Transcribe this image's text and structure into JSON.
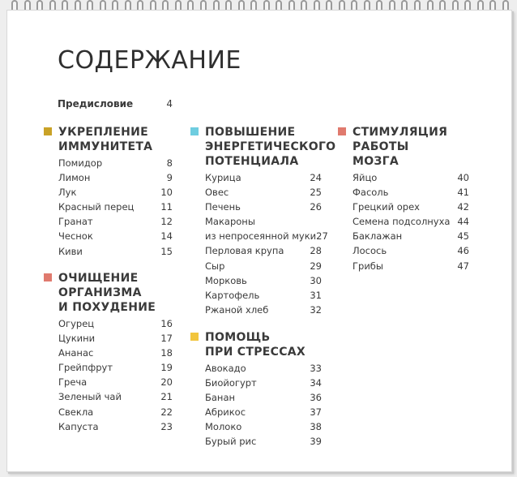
{
  "page_title": "СОДЕРЖАНИЕ",
  "preface": {
    "label": "Предисловие",
    "page": "4"
  },
  "sections": [
    {
      "title": "УКРЕПЛЕНИЕ\nИММУНИТЕТА",
      "color": "#c9a227",
      "items": [
        {
          "label": "Помидор",
          "page": "8"
        },
        {
          "label": "Лимон",
          "page": "9"
        },
        {
          "label": "Лук",
          "page": "10"
        },
        {
          "label": "Красный перец",
          "page": "11"
        },
        {
          "label": "Гранат",
          "page": "12"
        },
        {
          "label": "Чеснок",
          "page": "14"
        },
        {
          "label": "Киви",
          "page": "15"
        }
      ]
    },
    {
      "title": "ОЧИЩЕНИЕ\nОРГАНИЗМА\nИ ПОХУДЕНИЕ",
      "color": "#e07a6e",
      "items": [
        {
          "label": "Огурец",
          "page": "16"
        },
        {
          "label": "Цукини",
          "page": "17"
        },
        {
          "label": "Ананас",
          "page": "18"
        },
        {
          "label": "Грейпфрут",
          "page": "19"
        },
        {
          "label": "Греча",
          "page": "20"
        },
        {
          "label": "Зеленый чай",
          "page": "21"
        },
        {
          "label": "Свекла",
          "page": "22"
        },
        {
          "label": "Капуста",
          "page": "23"
        }
      ]
    },
    {
      "title": "ПОВЫШЕНИЕ\nЭНЕРГЕТИЧЕСКОГО\nПОТЕНЦИАЛА",
      "color": "#6fcde0",
      "items": [
        {
          "label": "Курица",
          "page": "24"
        },
        {
          "label": "Овес",
          "page": "25"
        },
        {
          "label": "Печень",
          "page": "26"
        },
        {
          "label": "Макароны",
          "page": ""
        },
        {
          "label": "из непросеянной муки",
          "page": "27"
        },
        {
          "label": "Перловая крупа",
          "page": "28"
        },
        {
          "label": "Сыр",
          "page": "29"
        },
        {
          "label": "Морковь",
          "page": "30"
        },
        {
          "label": "Картофель",
          "page": "31"
        },
        {
          "label": "Ржаной хлеб",
          "page": "32"
        }
      ]
    },
    {
      "title": "ПОМОЩЬ\nПРИ СТРЕССАХ",
      "color": "#f2c53d",
      "items": [
        {
          "label": "Авокадо",
          "page": "33"
        },
        {
          "label": "Биойогурт",
          "page": "34"
        },
        {
          "label": "Банан",
          "page": "36"
        },
        {
          "label": "Абрикос",
          "page": "37"
        },
        {
          "label": "Молоко",
          "page": "38"
        },
        {
          "label": "Бурый рис",
          "page": "39"
        }
      ]
    },
    {
      "title": "СТИМУЛЯЦИЯ\nРАБОТЫ\nМОЗГА",
      "color": "#e07a6e",
      "items": [
        {
          "label": "Яйцо",
          "page": "40"
        },
        {
          "label": "Фасоль",
          "page": "41"
        },
        {
          "label": "Грецкий орех",
          "page": "42"
        },
        {
          "label": "Семена подсолнуха",
          "page": "44"
        },
        {
          "label": "Баклажан",
          "page": "45"
        },
        {
          "label": "Лосось",
          "page": "46"
        },
        {
          "label": "Грибы",
          "page": "47"
        }
      ]
    }
  ]
}
